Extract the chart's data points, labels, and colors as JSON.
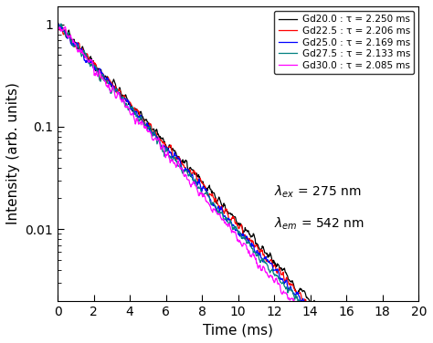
{
  "series": [
    {
      "label": "Gd20.0 : τ = 2.250 ms",
      "tau": 2.25,
      "color": "#000000",
      "noise_seed": 10
    },
    {
      "label": "Gd22.5 : τ = 2.206 ms",
      "tau": 2.206,
      "color": "#ff0000",
      "noise_seed": 20
    },
    {
      "label": "Gd25.0 : τ = 2.169 ms",
      "tau": 2.169,
      "color": "#0000ff",
      "noise_seed": 30
    },
    {
      "label": "Gd27.5 : τ = 2.133 ms",
      "tau": 2.133,
      "color": "#008080",
      "noise_seed": 40
    },
    {
      "label": "Gd30.0 : τ = 2.085 ms",
      "tau": 2.085,
      "color": "#ff00ff",
      "noise_seed": 50
    }
  ],
  "xlabel": "Time (ms)",
  "ylabel": "Intensity (arb. units)",
  "xlim": [
    0,
    20
  ],
  "ylim_log": [
    0.002,
    1.5
  ],
  "xticks": [
    0,
    2,
    4,
    6,
    8,
    10,
    12,
    14,
    16,
    18,
    20
  ],
  "n_points": 800,
  "t_max": 20.0,
  "noise_rel_amplitude": 0.12,
  "noise_floor": 0.0022,
  "smooth_window": 5,
  "background_color": "#ffffff"
}
